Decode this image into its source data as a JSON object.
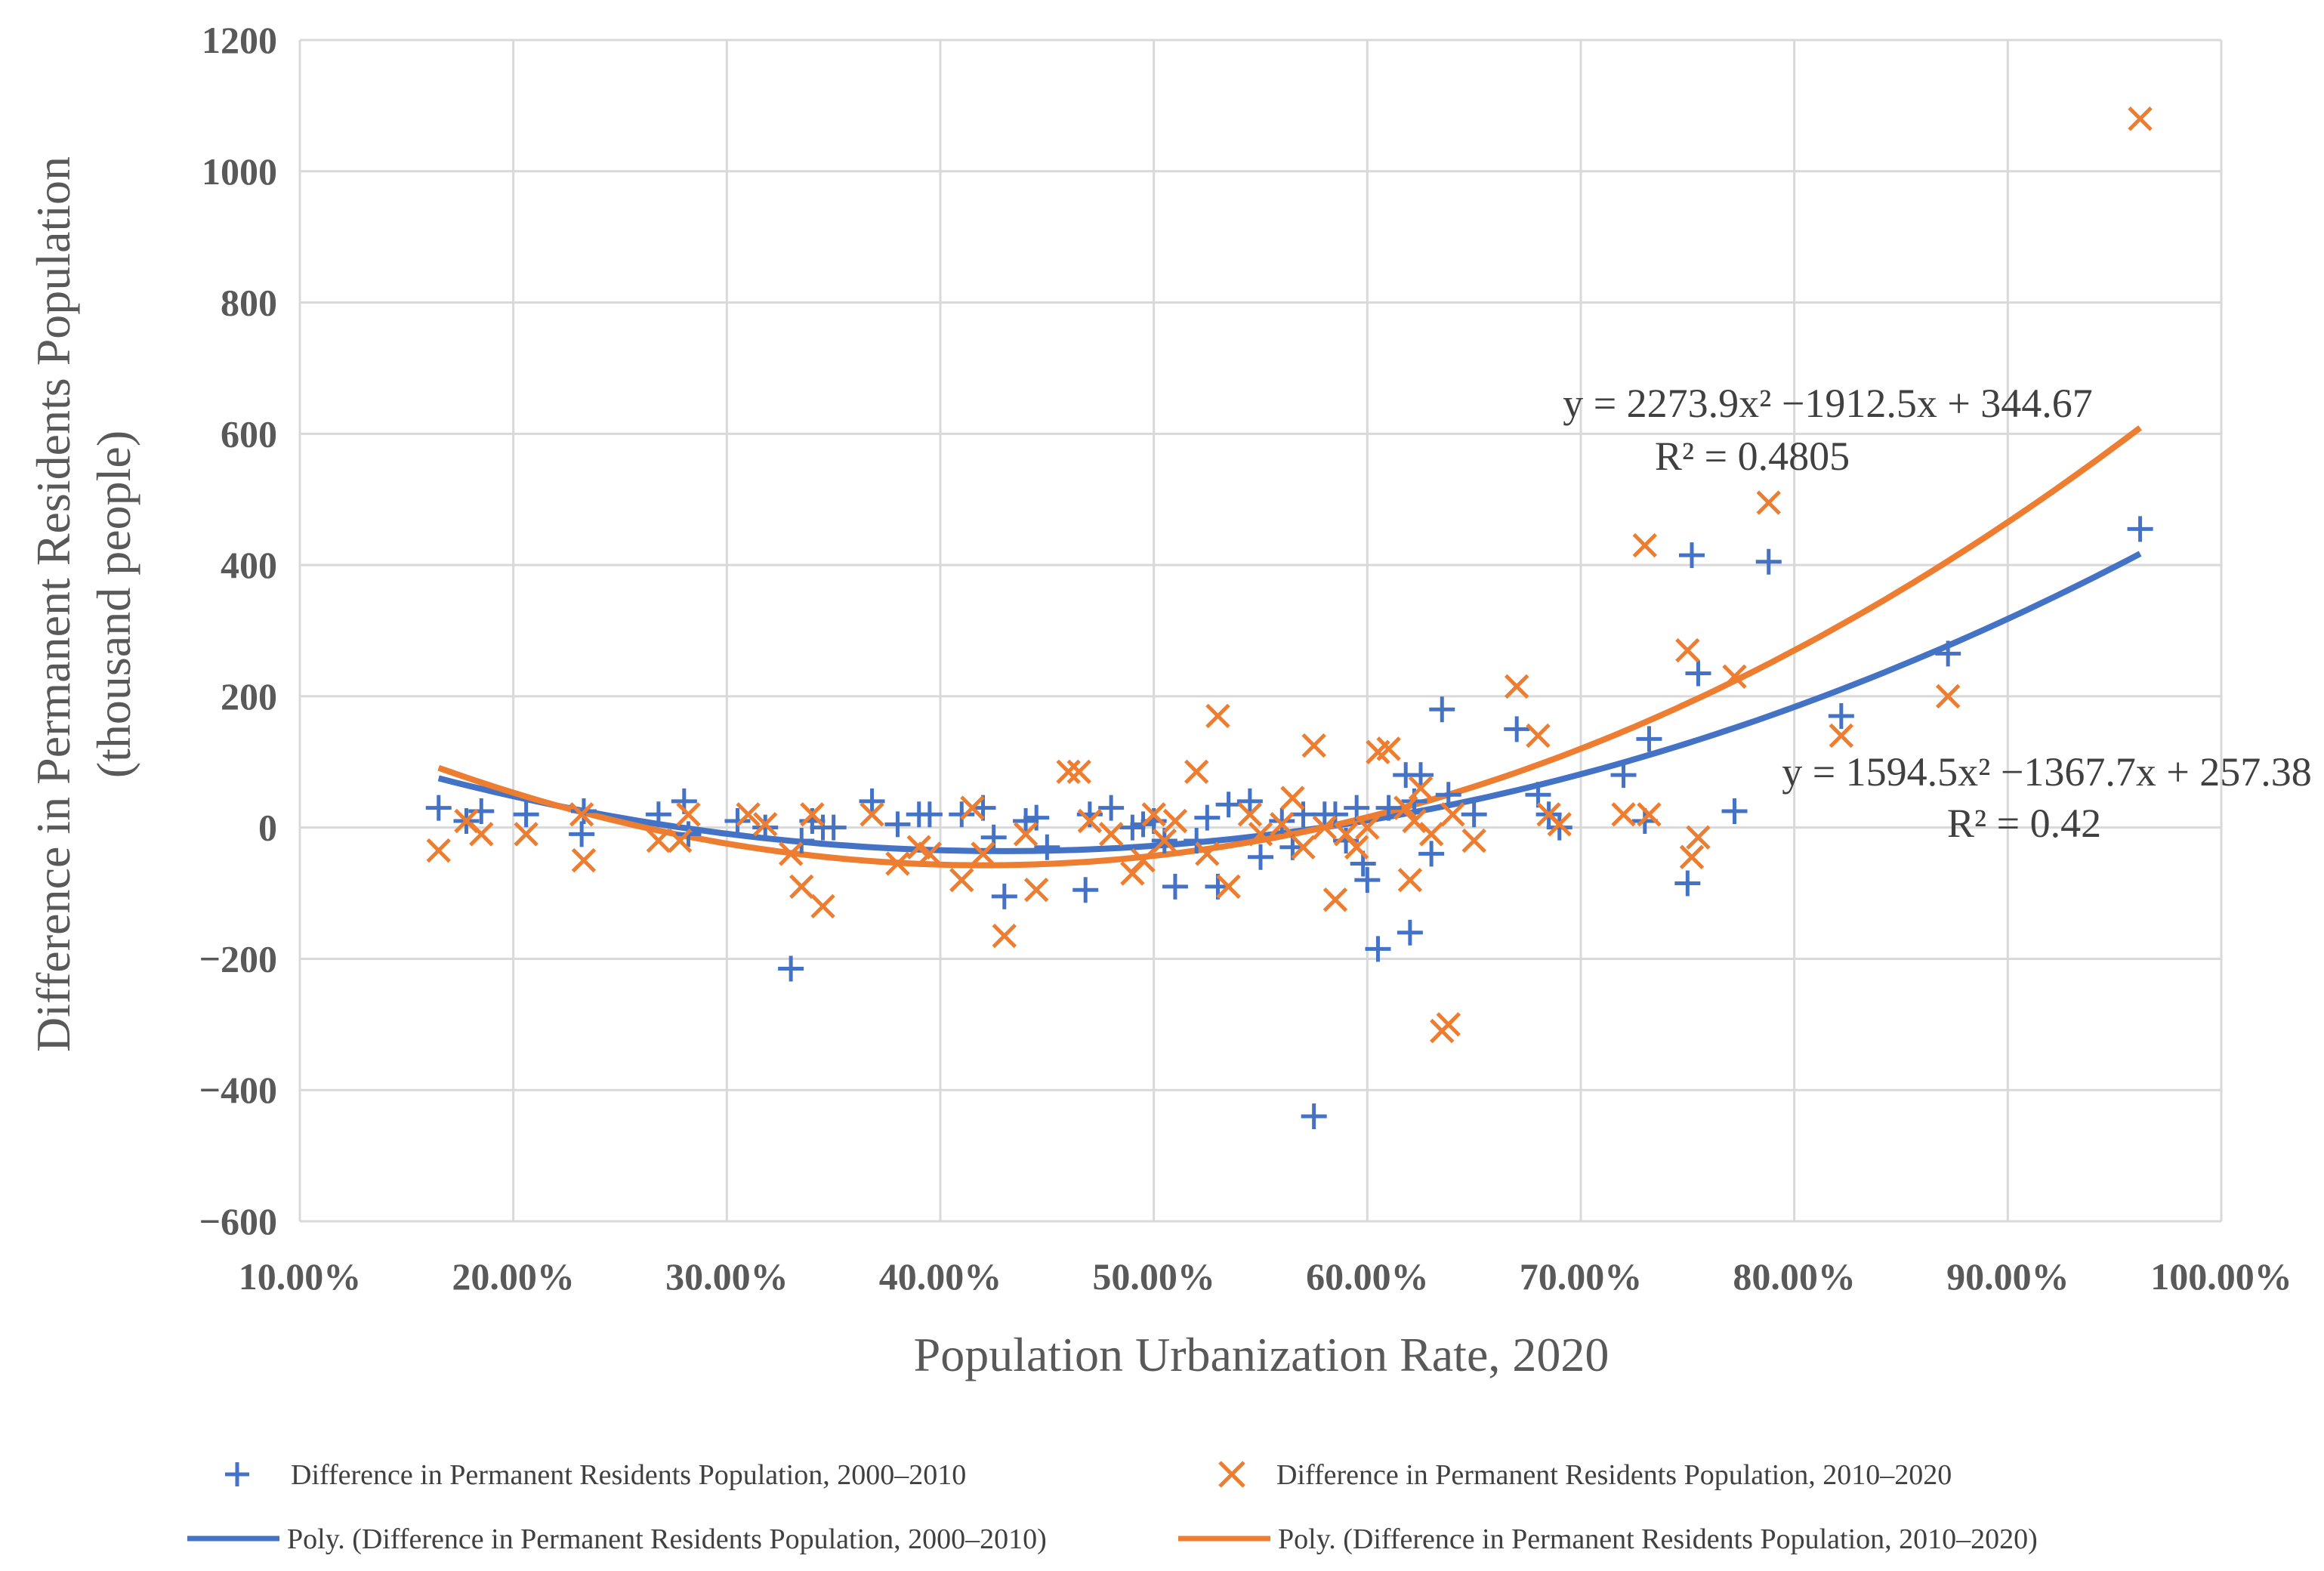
{
  "chart_data": {
    "type": "scatter",
    "title": "",
    "xlabel": "Population Urbanization Rate, 2020",
    "ylabel_line1": "Difference in Permanent Residents Population",
    "ylabel_line2": "(thousand people)",
    "xlim": [
      0.1,
      1.0
    ],
    "ylim": [
      -600,
      1200
    ],
    "x_ticks": [
      0.1,
      0.2,
      0.3,
      0.4,
      0.5,
      0.6,
      0.7,
      0.8,
      0.9,
      1.0
    ],
    "x_tick_labels": [
      "10.00%",
      "20.00%",
      "30.00%",
      "40.00%",
      "50.00%",
      "60.00%",
      "70.00%",
      "80.00%",
      "90.00%",
      "100.00%"
    ],
    "y_ticks": [
      -600,
      -400,
      -200,
      0,
      200,
      400,
      600,
      800,
      1000,
      1200
    ],
    "y_tick_labels": [
      "−600",
      "−400",
      "−200",
      "0",
      "200",
      "400",
      "600",
      "800",
      "1000",
      "1200"
    ],
    "grid": true,
    "legend_position": "bottom",
    "colors": {
      "blue": "#4472C4",
      "orange": "#ED7D31",
      "grid": "#D9D9D9"
    },
    "series": [
      {
        "name": "Difference in Permanent Residents Population, 2000–2010",
        "marker": "plus",
        "color": "#4472C4",
        "x": [
          0.165,
          0.178,
          0.185,
          0.206,
          0.232,
          0.233,
          0.268,
          0.28,
          0.282,
          0.305,
          0.318,
          0.33,
          0.335,
          0.34,
          0.345,
          0.35,
          0.368,
          0.38,
          0.39,
          0.395,
          0.41,
          0.42,
          0.425,
          0.43,
          0.44,
          0.445,
          0.45,
          0.468,
          0.47,
          0.48,
          0.49,
          0.495,
          0.5,
          0.505,
          0.51,
          0.52,
          0.525,
          0.53,
          0.535,
          0.545,
          0.55,
          0.56,
          0.565,
          0.57,
          0.575,
          0.58,
          0.585,
          0.59,
          0.595,
          0.598,
          0.6,
          0.605,
          0.61,
          0.618,
          0.62,
          0.622,
          0.625,
          0.63,
          0.635,
          0.638,
          0.65,
          0.67,
          0.68,
          0.685,
          0.69,
          0.72,
          0.73,
          0.732,
          0.75,
          0.752,
          0.755,
          0.772,
          0.788,
          0.822,
          0.872,
          0.962
        ],
        "y": [
          30,
          10,
          25,
          20,
          -10,
          25,
          20,
          40,
          -10,
          10,
          0,
          -215,
          -20,
          10,
          0,
          0,
          40,
          5,
          20,
          20,
          20,
          30,
          -15,
          -105,
          10,
          15,
          -30,
          -95,
          20,
          30,
          0,
          5,
          10,
          -20,
          -90,
          -20,
          15,
          -90,
          35,
          40,
          -45,
          10,
          -30,
          20,
          -440,
          20,
          20,
          -20,
          30,
          -55,
          -80,
          -185,
          30,
          80,
          -160,
          40,
          80,
          -40,
          180,
          50,
          20,
          150,
          50,
          20,
          0,
          80,
          10,
          135,
          -85,
          415,
          235,
          25,
          405,
          170,
          265,
          455
        ]
      },
      {
        "name": "Difference in Permanent Residents Population, 2010–2020",
        "marker": "x",
        "color": "#ED7D31",
        "x": [
          0.165,
          0.178,
          0.185,
          0.206,
          0.232,
          0.233,
          0.268,
          0.278,
          0.282,
          0.31,
          0.318,
          0.33,
          0.335,
          0.34,
          0.345,
          0.368,
          0.38,
          0.39,
          0.395,
          0.41,
          0.415,
          0.42,
          0.43,
          0.44,
          0.445,
          0.46,
          0.465,
          0.47,
          0.48,
          0.49,
          0.495,
          0.5,
          0.505,
          0.51,
          0.52,
          0.525,
          0.53,
          0.535,
          0.545,
          0.55,
          0.56,
          0.565,
          0.57,
          0.575,
          0.58,
          0.585,
          0.59,
          0.595,
          0.6,
          0.605,
          0.61,
          0.618,
          0.62,
          0.622,
          0.625,
          0.63,
          0.635,
          0.638,
          0.64,
          0.65,
          0.67,
          0.68,
          0.685,
          0.69,
          0.72,
          0.73,
          0.732,
          0.75,
          0.752,
          0.755,
          0.772,
          0.788,
          0.822,
          0.872,
          0.962
        ],
        "y": [
          -35,
          10,
          -10,
          -10,
          20,
          -50,
          -20,
          -20,
          20,
          20,
          5,
          -40,
          -90,
          20,
          -120,
          20,
          -55,
          -30,
          -40,
          -80,
          30,
          -40,
          -165,
          -10,
          -95,
          85,
          85,
          10,
          -10,
          -70,
          -50,
          20,
          -20,
          10,
          85,
          -40,
          170,
          -90,
          20,
          -10,
          5,
          45,
          -30,
          125,
          0,
          -110,
          -10,
          -30,
          0,
          115,
          120,
          30,
          -80,
          10,
          60,
          -10,
          -310,
          -300,
          20,
          -20,
          215,
          140,
          20,
          5,
          20,
          430,
          20,
          270,
          -45,
          -15,
          230,
          495,
          140,
          200,
          1080
        ]
      }
    ],
    "trendlines": [
      {
        "name": "Poly. (Difference in Permanent Residents Population, 2000–2010)",
        "color": "#4472C4",
        "coefficients": [
          1594.5,
          -1367.7,
          257.38
        ],
        "x_range": [
          0.165,
          0.962
        ],
        "equation": "y = 1594.5x² −1367.7x + 257.38",
        "r2": "R² = 0.42"
      },
      {
        "name": "Poly. (Difference in Permanent Residents Population, 2010–2020)",
        "color": "#ED7D31",
        "coefficients": [
          2273.9,
          -1912.5,
          344.67
        ],
        "x_range": [
          0.165,
          0.962
        ],
        "equation": "y = 2273.9x² −1912.5x + 344.67",
        "r2": "R² = 0.4805"
      }
    ]
  }
}
